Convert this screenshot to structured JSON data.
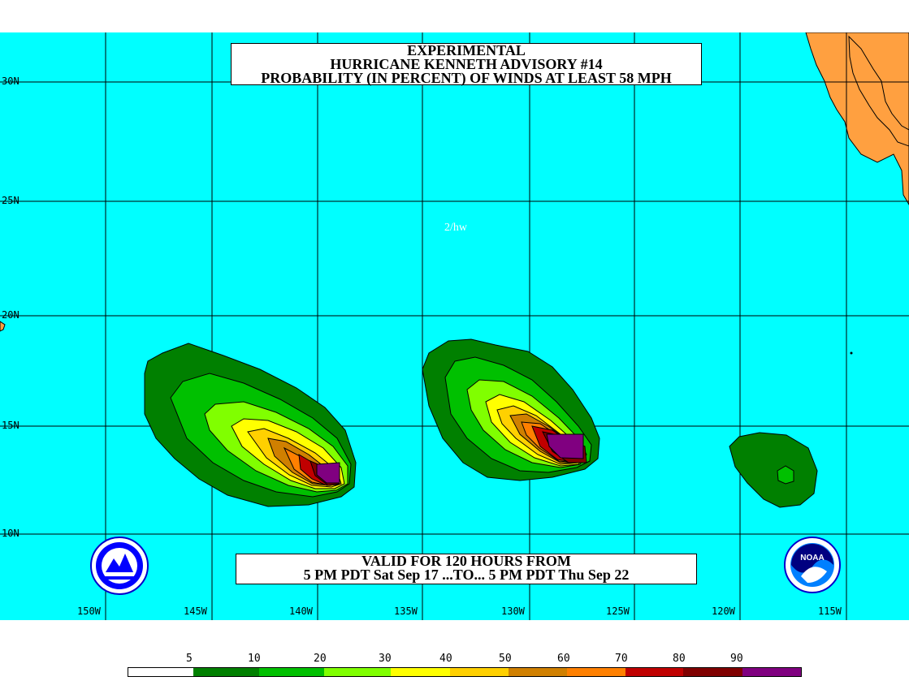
{
  "title": {
    "line1": "EXPERIMENTAL",
    "line2": "HURRICANE KENNETH ADVISORY #14",
    "line3": "PROBABILITY (IN PERCENT) OF WINDS AT LEAST 58 MPH"
  },
  "valid": {
    "line1": "VALID FOR 120 HOURS FROM",
    "line2": "5 PM PDT Sat Sep 17 ...TO... 5 PM PDT Thu Sep 22"
  },
  "credit": "2/hw",
  "latitude_labels": [
    "30N",
    "25N",
    "20N",
    "15N",
    "10N"
  ],
  "longitude_labels": [
    "150W",
    "145W",
    "140W",
    "135W",
    "130W",
    "125W",
    "120W",
    "115W"
  ],
  "legend": {
    "labels": [
      "5",
      "10",
      "20",
      "30",
      "40",
      "50",
      "60",
      "70",
      "80",
      "90"
    ],
    "colors": [
      "#ffffff",
      "#008000",
      "#00c000",
      "#80ff00",
      "#ffff00",
      "#ffd000",
      "#d08000",
      "#ff8000",
      "#c00000",
      "#800000",
      "#800080"
    ]
  },
  "colors": {
    "ocean": "#00ffff",
    "land": "#ffa040",
    "grid": "#000000"
  },
  "logos": [
    "nws-logo",
    "noaa-logo"
  ]
}
